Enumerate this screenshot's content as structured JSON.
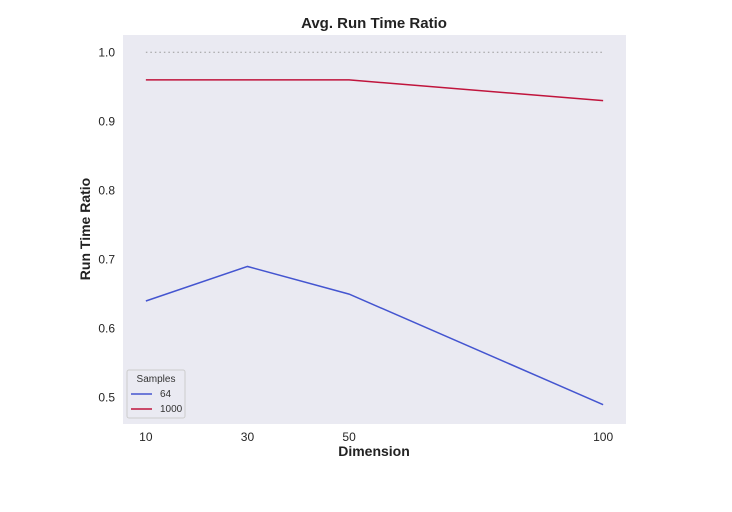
{
  "chart_data": {
    "type": "line",
    "title": "Avg. Run Time Ratio",
    "xlabel": "Dimension",
    "ylabel": "Run Time Ratio",
    "x": [
      10,
      30,
      50,
      100
    ],
    "xticks": [
      "10",
      "30",
      "50",
      "100"
    ],
    "yticks": [
      "0.5",
      "0.6",
      "0.7",
      "0.8",
      "0.9",
      "1.0"
    ],
    "xlim": [
      5.5,
      104.5
    ],
    "ylim": [
      0.462,
      1.025
    ],
    "grid": false,
    "background": "#eaeaf2",
    "legend": {
      "title": "Samples",
      "placement": "lower-left"
    },
    "series": [
      {
        "name": "64",
        "values": [
          0.64,
          0.69,
          0.65,
          0.49
        ],
        "color": "#4455d0"
      },
      {
        "name": "1000",
        "values": [
          0.96,
          0.96,
          0.96,
          0.93
        ],
        "color": "#c0143c"
      }
    ],
    "reference_line": {
      "y": 1.0,
      "x": [
        10,
        100
      ],
      "style": "dotted",
      "color": "#999999"
    }
  }
}
